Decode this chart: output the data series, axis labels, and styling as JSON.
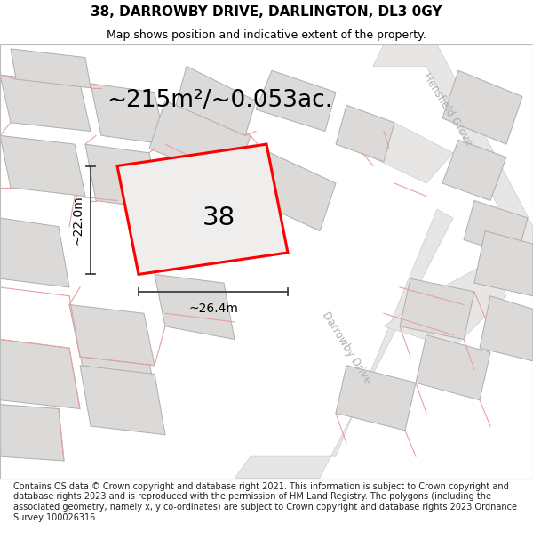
{
  "title": "38, DARROWBY DRIVE, DARLINGTON, DL3 0GY",
  "subtitle": "Map shows position and indicative extent of the property.",
  "area_label": "~215m²/~0.053ac.",
  "plot_number": "38",
  "width_label": "~26.4m",
  "height_label": "~22.0m",
  "footer": "Contains OS data © Crown copyright and database right 2021. This information is subject to Crown copyright and database rights 2023 and is reproduced with the permission of HM Land Registry. The polygons (including the associated geometry, namely x, y co-ordinates) are subject to Crown copyright and database rights 2023 Ordnance Survey 100026316.",
  "map_bg": "#f5f3f2",
  "road_fill": "#e8e6e4",
  "building_fill": "#dcdad8",
  "building_stroke": "#b0aeac",
  "highlight_fill": "#f0eeed",
  "highlight_stroke": "#ff0000",
  "pink_color": "#e8a0a0",
  "dim_color": "#404040",
  "street_color": "#b0b0b0",
  "title_fontsize": 11,
  "subtitle_fontsize": 9,
  "footer_fontsize": 7.0,
  "area_fontsize": 19,
  "plot_num_fontsize": 21,
  "dim_fontsize": 10,
  "street_fontsize": 8.5
}
